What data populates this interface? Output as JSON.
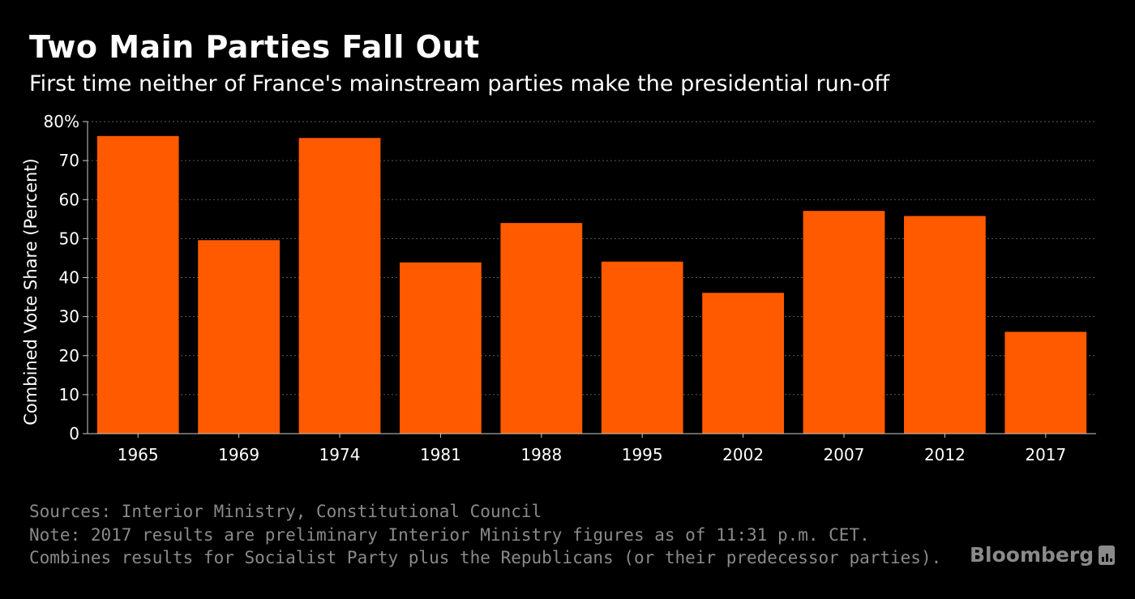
{
  "chart_data": {
    "type": "bar",
    "title": "Two Main Parties Fall Out",
    "subtitle": "First time neither of France's mainstream parties make the presidential run-off",
    "xlabel": "",
    "ylabel": "Combined Vote Share (Percent)",
    "ylim": [
      0,
      80
    ],
    "yticks": [
      0,
      10,
      20,
      30,
      40,
      50,
      60,
      70,
      80
    ],
    "ytick_labels": [
      "0",
      "10",
      "20",
      "30",
      "40",
      "50",
      "60",
      "70",
      "80%"
    ],
    "grid": true,
    "categories": [
      "1965",
      "1969",
      "1974",
      "1981",
      "1988",
      "1995",
      "2002",
      "2007",
      "2012",
      "2017"
    ],
    "values": [
      76.3,
      49.6,
      75.8,
      43.9,
      54.0,
      44.1,
      36.1,
      57.1,
      55.8,
      26.1
    ],
    "bar_color": "#ff5a00"
  },
  "footer": {
    "sources": "Sources: Interior Ministry, Constitutional Council",
    "note": "Note: 2017 results are preliminary Interior Ministry figures as of 11:31 p.m. CET.",
    "combines": "Combines results for Socialist Party plus the Republicans (or their predecessor parties)."
  },
  "brand": {
    "name": "Bloomberg",
    "icon": "bloomberg-chart-icon"
  }
}
